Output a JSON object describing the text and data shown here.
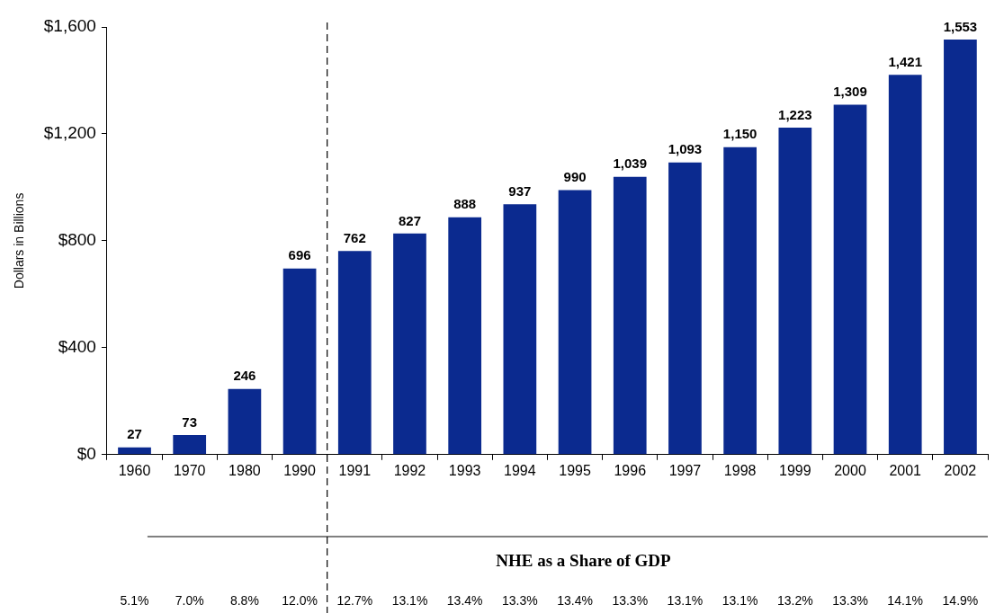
{
  "chart_data": {
    "type": "bar",
    "ylabel": "Dollars in Billions",
    "categories": [
      "1960",
      "1970",
      "1980",
      "1990",
      "1991",
      "1992",
      "1993",
      "1994",
      "1995",
      "1996",
      "1997",
      "1998",
      "1999",
      "2000",
      "2001",
      "2002"
    ],
    "values": [
      27,
      73,
      246,
      696,
      762,
      827,
      888,
      937,
      990,
      1039,
      1093,
      1150,
      1223,
      1309,
      1421,
      1553
    ],
    "value_labels": [
      "27",
      "73",
      "246",
      "696",
      "762",
      "827",
      "888",
      "937",
      "990",
      "1,039",
      "1,093",
      "1,150",
      "1,223",
      "1,309",
      "1,421",
      "1,553"
    ],
    "color": "#0b2a8f",
    "ylim": [
      0,
      1600
    ],
    "yticks": [
      {
        "value": 0,
        "label": "$0"
      },
      {
        "value": 400,
        "label": "$400"
      },
      {
        "value": 800,
        "label": "$800"
      },
      {
        "value": 1200,
        "label": "$1,200"
      },
      {
        "value": 1600,
        "label": "$1,600"
      }
    ],
    "grid": false,
    "legend": false,
    "annotations": [
      "NHE as a Share of GDP",
      "5.1%",
      "7.0%",
      "8.8%",
      "12.0%",
      "12.7%",
      "13.1%",
      "13.4%",
      "13.3%",
      "13.4%",
      "13.3%",
      "13.1%",
      "13.1%",
      "13.2%",
      "13.3%",
      "14.1%",
      "14.9%"
    ]
  }
}
